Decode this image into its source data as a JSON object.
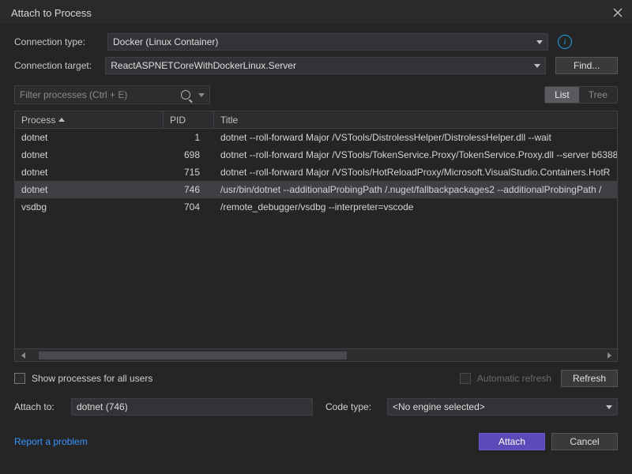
{
  "window": {
    "title": "Attach to Process"
  },
  "labels": {
    "connection_type": "Connection type:",
    "connection_target": "Connection target:",
    "attach_to": "Attach to:",
    "code_type": "Code type:"
  },
  "values": {
    "connection_type": "Docker (Linux Container)",
    "connection_target": "ReactASPNETCoreWithDockerLinux.Server",
    "attach_to": "dotnet (746)",
    "code_type": "<No engine selected>"
  },
  "buttons": {
    "find": "Find...",
    "refresh": "Refresh",
    "attach": "Attach",
    "cancel": "Cancel"
  },
  "filter": {
    "placeholder": "Filter processes (Ctrl + E)"
  },
  "view": {
    "list": "List",
    "tree": "Tree"
  },
  "table": {
    "headers": {
      "process": "Process",
      "pid": "PID",
      "title": "Title"
    },
    "rows": [
      {
        "process": "dotnet",
        "pid": "1",
        "title": "dotnet --roll-forward Major /VSTools/DistrolessHelper/DistrolessHelper.dll --wait"
      },
      {
        "process": "dotnet",
        "pid": "698",
        "title": "dotnet --roll-forward Major /VSTools/TokenService.Proxy/TokenService.Proxy.dll --server b6388"
      },
      {
        "process": "dotnet",
        "pid": "715",
        "title": "dotnet --roll-forward Major /VSTools/HotReloadProxy/Microsoft.VisualStudio.Containers.HotR"
      },
      {
        "process": "dotnet",
        "pid": "746",
        "title": "/usr/bin/dotnet --additionalProbingPath /.nuget/fallbackpackages2 --additionalProbingPath /"
      },
      {
        "process": "vsdbg",
        "pid": "704",
        "title": "/remote_debugger/vsdbg --interpreter=vscode"
      }
    ],
    "selected_index": 3
  },
  "checkboxes": {
    "show_all_users": "Show processes for all users",
    "auto_refresh": "Automatic refresh"
  },
  "link": {
    "report": "Report a problem"
  }
}
